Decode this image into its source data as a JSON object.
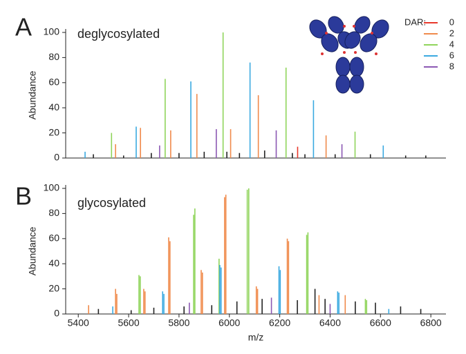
{
  "chart_data": [
    {
      "type": "stem",
      "label": "A",
      "title": "deglycosylated",
      "ylabel": "Abundance",
      "xlim": [
        5350,
        6860
      ],
      "ylim": [
        0,
        100
      ],
      "yticks": [
        0,
        20,
        40,
        60,
        80,
        100
      ],
      "legend_title": "DAR:",
      "legend": "upper right",
      "series": [
        {
          "name": "0",
          "color": "#e8372a",
          "x": [
            6271
          ],
          "values": [
            9
          ]
        },
        {
          "name": "2",
          "color": "#f08a4b",
          "x": [
            5548,
            5647,
            5767,
            5871,
            6005,
            6115,
            6384
          ],
          "values": [
            11,
            24,
            22,
            51,
            23,
            50,
            18
          ]
        },
        {
          "name": "4",
          "color": "#8fd45a",
          "x": [
            5532,
            5745,
            5975,
            6225,
            6499
          ],
          "values": [
            20,
            63,
            100,
            72,
            21
          ]
        },
        {
          "name": "6",
          "color": "#3aa9e0",
          "x": [
            5427,
            5630,
            5847,
            6082,
            6334,
            6611
          ],
          "values": [
            5,
            25,
            61,
            76,
            46,
            10
          ]
        },
        {
          "name": "8",
          "color": "#8b57b3",
          "x": [
            5723,
            5948,
            6186,
            6447
          ],
          "values": [
            10,
            23,
            22,
            11
          ]
        },
        {
          "color": "#222222",
          "x": [
            5460,
            5580,
            5690,
            5800,
            5900,
            5990,
            6040,
            6140,
            6250,
            6300,
            6420,
            6560,
            6700,
            6780
          ],
          "values": [
            3,
            2,
            4,
            4,
            5,
            5,
            4,
            6,
            4,
            3,
            3,
            3,
            2,
            2
          ]
        }
      ]
    },
    {
      "type": "stem",
      "label": "B",
      "title": "glycosylated",
      "ylabel": "Abundance",
      "xlabel": "m/z",
      "xlim": [
        5350,
        6860
      ],
      "ylim": [
        0,
        100
      ],
      "yticks": [
        0,
        20,
        40,
        60,
        80,
        100
      ],
      "xticks": [
        5400,
        5600,
        5800,
        6000,
        6200,
        6400,
        6600,
        6800
      ],
      "series": [
        {
          "color": "#f08a4b",
          "x": [
            5441,
            5548,
            5553,
            5660,
            5665,
            5759,
            5764,
            5888,
            5893,
            5981,
            5986,
            6107,
            6112,
            6230,
            6235,
            6356,
            6460
          ],
          "values": [
            7,
            20,
            16,
            20,
            18,
            61,
            58,
            35,
            33,
            93,
            95,
            22,
            20,
            60,
            58,
            15,
            15
          ]
        },
        {
          "color": "#8fd45a",
          "x": [
            5641,
            5646,
            5858,
            5863,
            5959,
            6071,
            6077,
            6307,
            6312,
            6540,
            6545
          ],
          "values": [
            31,
            30,
            79,
            84,
            44,
            99,
            100,
            63,
            65,
            12,
            11
          ]
        },
        {
          "color": "#3aa9e0",
          "x": [
            5537,
            5735,
            5740,
            5962,
            5967,
            6197,
            6202,
            6430,
            6435,
            6633
          ],
          "values": [
            6,
            18,
            16,
            39,
            37,
            38,
            35,
            18,
            17,
            4
          ]
        },
        {
          "color": "#8b57b3",
          "x": [
            5841,
            6167,
            6400
          ],
          "values": [
            9,
            13,
            8
          ]
        },
        {
          "color": "#222222",
          "x": [
            5480,
            5610,
            5700,
            5820,
            5930,
            6030,
            6130,
            6270,
            6340,
            6380,
            6500,
            6580,
            6680,
            6760
          ],
          "values": [
            4,
            3,
            5,
            6,
            7,
            10,
            12,
            11,
            20,
            12,
            10,
            9,
            6,
            4
          ]
        }
      ]
    }
  ]
}
